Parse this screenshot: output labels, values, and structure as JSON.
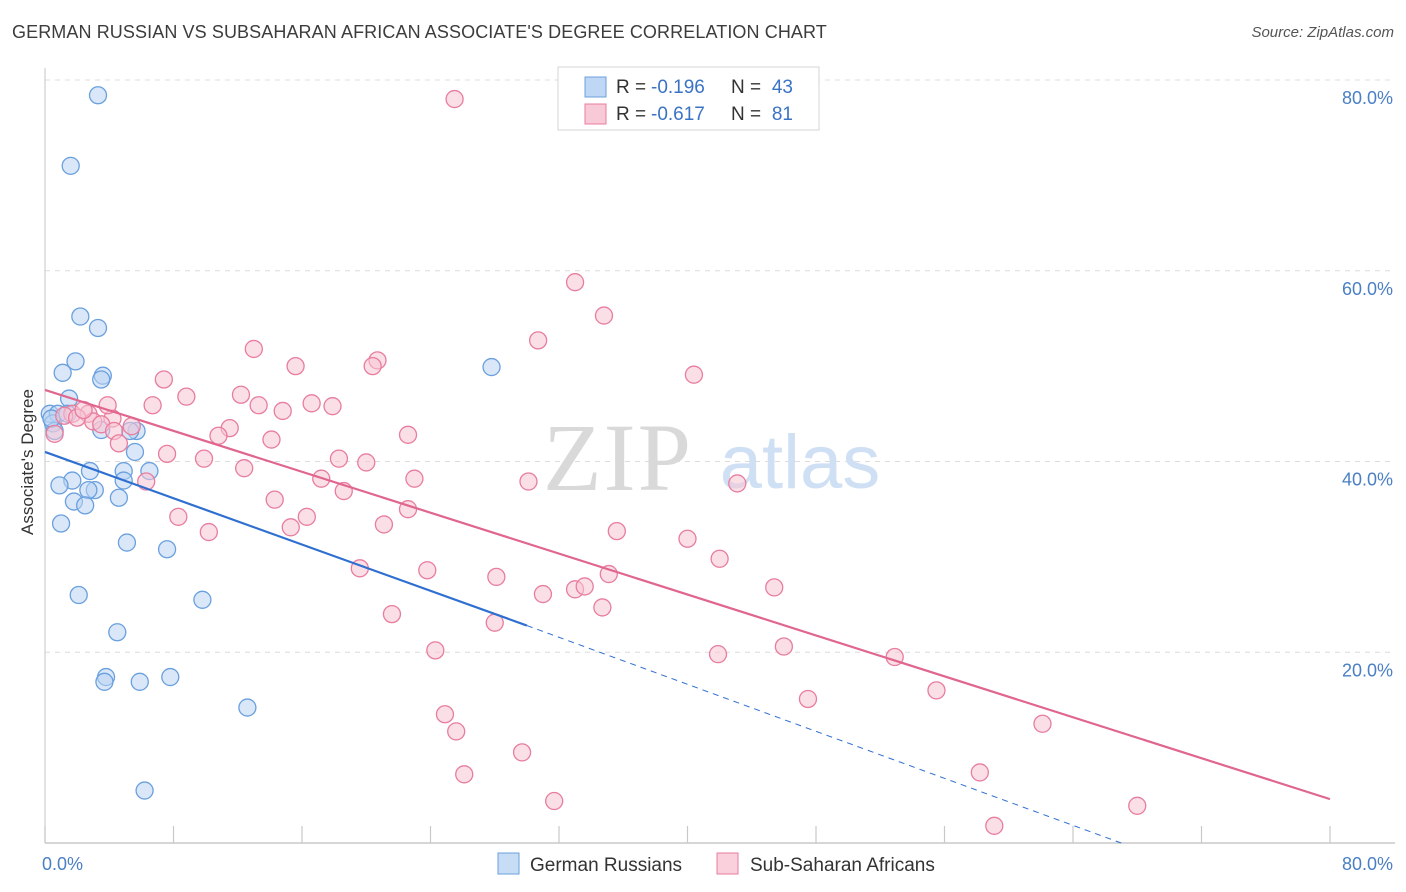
{
  "title": "GERMAN RUSSIAN VS SUBSAHARAN AFRICAN ASSOCIATE'S DEGREE CORRELATION CHART",
  "source": "Source: ZipAtlas.com",
  "watermark": {
    "zip": "ZIP",
    "atlas": "atlas"
  },
  "legend": {
    "rows": [
      {
        "r_label": "R =",
        "r_value": "-0.196",
        "n_label": "N =",
        "n_value": "43",
        "color": "#a9c8f0"
      },
      {
        "r_label": "R =",
        "r_value": "-0.617",
        "n_label": "N =",
        "n_value": "81",
        "color": "#f6b8cb"
      }
    ]
  },
  "chart_data": {
    "type": "scatter",
    "ylabel": "Associate's Degree",
    "xlim": [
      0,
      80
    ],
    "ylim": [
      0,
      80
    ],
    "x_tick_labels": [
      "0.0%",
      "80.0%"
    ],
    "y_ticks": [
      20,
      40,
      60,
      80
    ],
    "y_tick_labels": [
      "20.0%",
      "40.0%",
      "60.0%",
      "80.0%"
    ],
    "grid": true,
    "legend_position": "bottom",
    "series": [
      {
        "name": "German Russians",
        "color": "#6aa0de",
        "fill": "#b9d3f3",
        "trend": {
          "x0": 0,
          "y0": 41.0,
          "x1": 30,
          "y1": 22.8,
          "dash_to_x": 67,
          "dash_to_y": 0
        },
        "points": [
          [
            3.3,
            78.4
          ],
          [
            1.6,
            71.0
          ],
          [
            2.2,
            55.2
          ],
          [
            3.3,
            54.0
          ],
          [
            1.9,
            50.5
          ],
          [
            1.1,
            49.3
          ],
          [
            3.6,
            49.0
          ],
          [
            3.5,
            48.6
          ],
          [
            1.5,
            46.6
          ],
          [
            0.3,
            45.0
          ],
          [
            0.8,
            45.0
          ],
          [
            1.4,
            45.0
          ],
          [
            0.5,
            44.0
          ],
          [
            0.6,
            43.2
          ],
          [
            5.7,
            43.2
          ],
          [
            5.3,
            43.2
          ],
          [
            2.8,
            39.0
          ],
          [
            4.9,
            39.0
          ],
          [
            6.5,
            39.0
          ],
          [
            4.9,
            38.0
          ],
          [
            1.7,
            38.0
          ],
          [
            3.1,
            37.0
          ],
          [
            0.9,
            37.5
          ],
          [
            2.7,
            37.0
          ],
          [
            1.8,
            35.8
          ],
          [
            2.5,
            35.4
          ],
          [
            4.6,
            36.2
          ],
          [
            1.0,
            33.5
          ],
          [
            5.1,
            31.5
          ],
          [
            7.6,
            30.8
          ],
          [
            5.6,
            41.0
          ],
          [
            2.1,
            26.0
          ],
          [
            9.8,
            25.5
          ],
          [
            4.5,
            22.1
          ],
          [
            27.8,
            49.9
          ],
          [
            3.8,
            17.4
          ],
          [
            3.7,
            16.9
          ],
          [
            5.9,
            16.9
          ],
          [
            7.8,
            17.4
          ],
          [
            12.6,
            14.2
          ],
          [
            6.2,
            5.5
          ],
          [
            3.5,
            43.3
          ],
          [
            0.4,
            44.5
          ]
        ]
      },
      {
        "name": "Sub-Saharan Africans",
        "color": "#e87d9e",
        "fill": "#f8c4d3",
        "trend": {
          "x0": 0,
          "y0": 47.5,
          "x1": 80,
          "y1": 4.6
        },
        "points": [
          [
            25.5,
            78.0
          ],
          [
            33.0,
            58.8
          ],
          [
            34.8,
            55.3
          ],
          [
            30.7,
            52.7
          ],
          [
            13.0,
            51.8
          ],
          [
            15.6,
            50.0
          ],
          [
            20.7,
            50.6
          ],
          [
            20.4,
            50.0
          ],
          [
            7.4,
            48.6
          ],
          [
            40.4,
            49.1
          ],
          [
            12.2,
            47.0
          ],
          [
            8.8,
            46.8
          ],
          [
            6.7,
            45.9
          ],
          [
            13.3,
            45.9
          ],
          [
            16.6,
            46.1
          ],
          [
            17.9,
            45.8
          ],
          [
            14.8,
            45.3
          ],
          [
            2.7,
            45.0
          ],
          [
            1.7,
            45.0
          ],
          [
            1.2,
            44.8
          ],
          [
            2.0,
            44.6
          ],
          [
            4.2,
            44.5
          ],
          [
            3.0,
            44.2
          ],
          [
            3.5,
            43.9
          ],
          [
            5.4,
            43.7
          ],
          [
            4.3,
            43.2
          ],
          [
            11.5,
            43.5
          ],
          [
            10.8,
            42.7
          ],
          [
            22.6,
            42.8
          ],
          [
            0.6,
            42.9
          ],
          [
            14.1,
            42.3
          ],
          [
            4.6,
            41.9
          ],
          [
            7.6,
            40.8
          ],
          [
            9.9,
            40.3
          ],
          [
            18.3,
            40.3
          ],
          [
            20.0,
            39.9
          ],
          [
            12.4,
            39.3
          ],
          [
            17.2,
            38.2
          ],
          [
            23.0,
            38.2
          ],
          [
            30.1,
            37.9
          ],
          [
            43.1,
            37.7
          ],
          [
            6.3,
            37.9
          ],
          [
            18.6,
            36.9
          ],
          [
            14.3,
            36.0
          ],
          [
            22.6,
            35.0
          ],
          [
            8.3,
            34.2
          ],
          [
            16.3,
            34.2
          ],
          [
            15.3,
            33.1
          ],
          [
            21.1,
            33.4
          ],
          [
            35.6,
            32.7
          ],
          [
            10.2,
            32.6
          ],
          [
            40.0,
            31.9
          ],
          [
            42.0,
            29.8
          ],
          [
            19.6,
            28.8
          ],
          [
            23.8,
            28.6
          ],
          [
            35.1,
            28.2
          ],
          [
            28.1,
            27.9
          ],
          [
            33.0,
            26.6
          ],
          [
            33.6,
            26.9
          ],
          [
            45.4,
            26.8
          ],
          [
            31.0,
            26.1
          ],
          [
            34.7,
            24.7
          ],
          [
            21.6,
            24.0
          ],
          [
            28.0,
            23.1
          ],
          [
            24.3,
            20.2
          ],
          [
            41.9,
            19.8
          ],
          [
            46.0,
            20.6
          ],
          [
            52.9,
            19.5
          ],
          [
            55.5,
            16.0
          ],
          [
            47.5,
            15.1
          ],
          [
            62.1,
            12.5
          ],
          [
            24.9,
            13.5
          ],
          [
            25.6,
            11.7
          ],
          [
            29.7,
            9.5
          ],
          [
            26.1,
            7.2
          ],
          [
            58.2,
            7.4
          ],
          [
            31.7,
            4.4
          ],
          [
            68.0,
            3.9
          ],
          [
            59.1,
            1.8
          ],
          [
            3.9,
            45.9
          ],
          [
            2.4,
            45.4
          ]
        ]
      }
    ]
  }
}
